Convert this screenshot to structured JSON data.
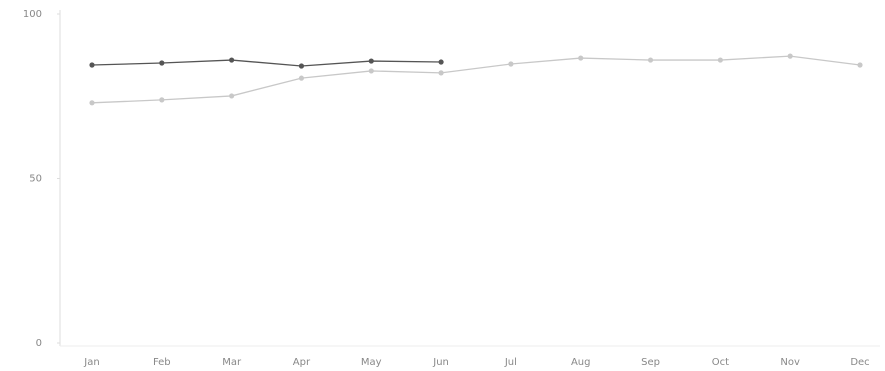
{
  "chart_data": {
    "type": "line",
    "categories": [
      "Jan",
      "Feb",
      "Mar",
      "Apr",
      "May",
      "Jun",
      "Jul",
      "Aug",
      "Sep",
      "Oct",
      "Nov",
      "Dec"
    ],
    "series": [
      {
        "color": "#c8c8c8",
        "values": [
          73,
          73.9,
          75.1,
          80.5,
          82.7,
          82.1,
          84.8,
          86.6,
          86,
          86,
          87.2,
          84.5
        ]
      },
      {
        "color": "#555555",
        "values": [
          84.5,
          85.1,
          86,
          84.2,
          85.7,
          85.4,
          null,
          null,
          null,
          null,
          null,
          null
        ]
      }
    ],
    "ylim": [
      0,
      100
    ],
    "yticks": [
      0,
      50,
      100
    ],
    "grid": false
  }
}
